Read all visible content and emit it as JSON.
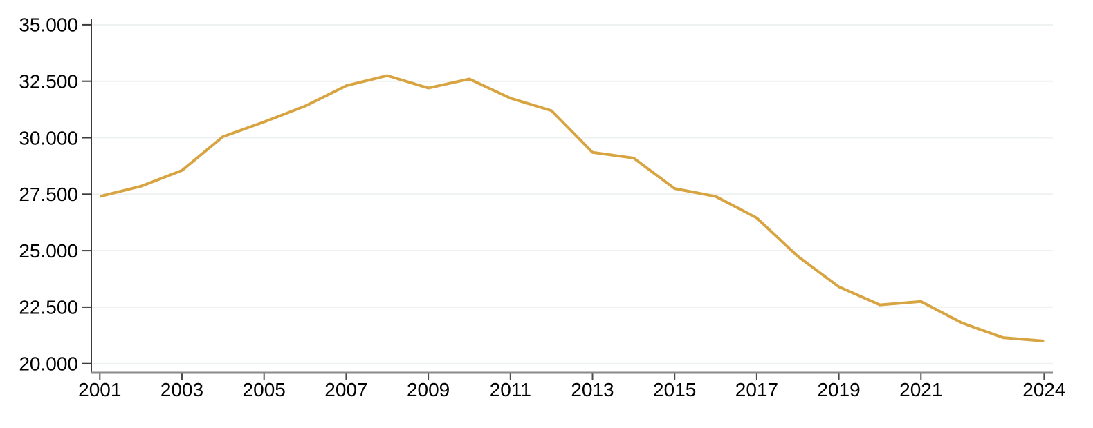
{
  "chart_data": {
    "type": "line",
    "title": "",
    "xlabel": "",
    "ylabel": "",
    "grid": true,
    "legend": false,
    "background_color": "#ffffff",
    "line_color": "#d8a442",
    "x": [
      2001,
      2002,
      2003,
      2004,
      2005,
      2006,
      2007,
      2008,
      2009,
      2010,
      2011,
      2012,
      2013,
      2014,
      2015,
      2016,
      2017,
      2018,
      2019,
      2020,
      2021,
      2022,
      2023,
      2024
    ],
    "series": [
      {
        "name": "value",
        "color": "#d8a442",
        "values": [
          27400,
          27850,
          28550,
          30050,
          30700,
          31400,
          32300,
          32750,
          32200,
          32600,
          31750,
          31200,
          29350,
          29100,
          27750,
          27400,
          26450,
          24750,
          23400,
          22600,
          22750,
          21800,
          21150,
          21000
        ]
      }
    ],
    "y_axis": {
      "min": 20000,
      "max": 35000,
      "tick_step": 2500,
      "tick_values": [
        20000,
        22500,
        25000,
        27500,
        30000,
        32500,
        35000
      ],
      "tick_labels": [
        "20.000",
        "22.500",
        "25.000",
        "27.500",
        "30.000",
        "32.500",
        "35.000"
      ],
      "axis_color": "#3a3a3a",
      "label_color": "#000000"
    },
    "x_axis": {
      "tick_values": [
        2001,
        2003,
        2005,
        2007,
        2009,
        2011,
        2013,
        2015,
        2017,
        2019,
        2021,
        2024
      ],
      "tick_labels": [
        "2001",
        "2003",
        "2005",
        "2007",
        "2009",
        "2011",
        "2013",
        "2015",
        "2017",
        "2019",
        "2021",
        "2024"
      ],
      "axis_color": "#8a8a8a",
      "tick_color": "#4a4a4a",
      "label_color": "#000000"
    },
    "gridline_color": "#eef1f1"
  }
}
